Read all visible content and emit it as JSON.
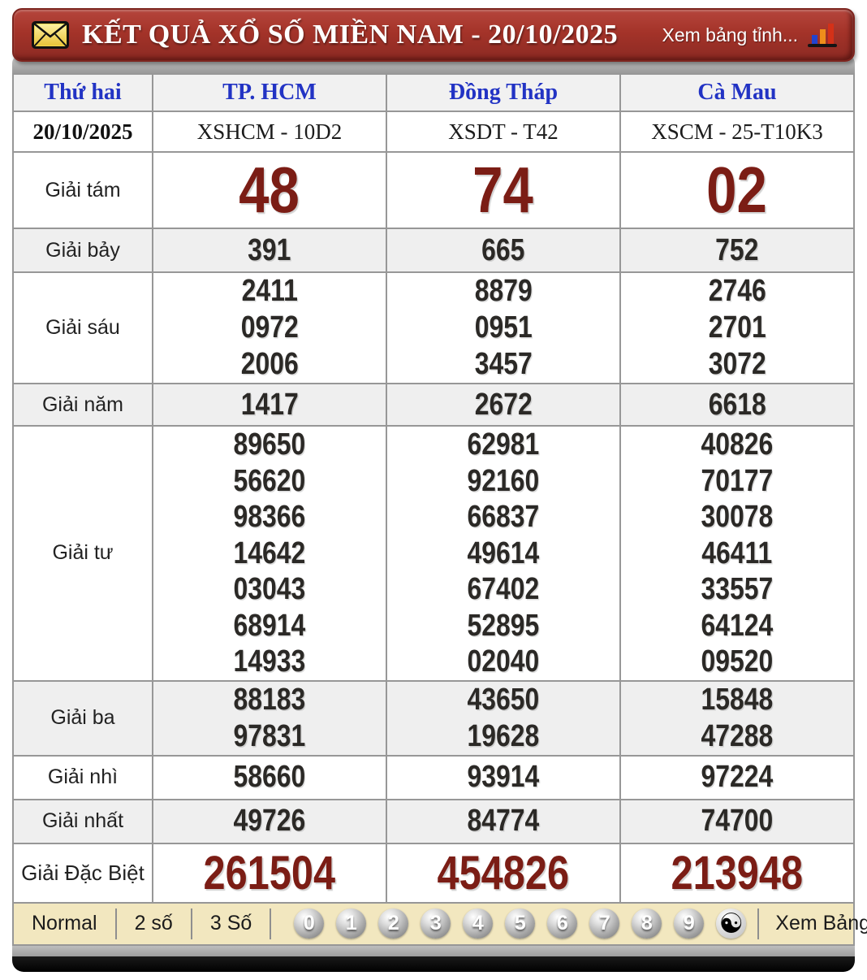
{
  "header": {
    "title": "KẾT QUẢ XỔ SỐ MIỀN NAM - 20/10/2025",
    "right_link": "Xem bảng tỉnh..."
  },
  "table": {
    "columns": [
      "Thứ hai",
      "TP. HCM",
      "Đồng Tháp",
      "Cà Mau"
    ],
    "date": "20/10/2025",
    "codes": [
      "XSHCM - 10D2",
      "XSDT - T42",
      "XSCM - 25-T10K3"
    ],
    "prizes": [
      {
        "label": "Giải tám",
        "style": "tam",
        "values": [
          [
            "48"
          ],
          [
            "74"
          ],
          [
            "02"
          ]
        ]
      },
      {
        "label": "Giải bảy",
        "style": "bay",
        "values": [
          [
            "391"
          ],
          [
            "665"
          ],
          [
            "752"
          ]
        ]
      },
      {
        "label": "Giải sáu",
        "style": "sau",
        "values": [
          [
            "2411",
            "0972",
            "2006"
          ],
          [
            "8879",
            "0951",
            "3457"
          ],
          [
            "2746",
            "2701",
            "3072"
          ]
        ]
      },
      {
        "label": "Giải năm",
        "style": "nam",
        "values": [
          [
            "1417"
          ],
          [
            "2672"
          ],
          [
            "6618"
          ]
        ]
      },
      {
        "label": "Giải tư",
        "style": "tu",
        "values": [
          [
            "89650",
            "56620",
            "98366",
            "14642",
            "03043",
            "68914",
            "14933"
          ],
          [
            "62981",
            "92160",
            "66837",
            "49614",
            "67402",
            "52895",
            "02040"
          ],
          [
            "40826",
            "70177",
            "30078",
            "46411",
            "33557",
            "64124",
            "09520"
          ]
        ]
      },
      {
        "label": "Giải ba",
        "style": "ba",
        "values": [
          [
            "88183",
            "97831"
          ],
          [
            "43650",
            "19628"
          ],
          [
            "15848",
            "47288"
          ]
        ]
      },
      {
        "label": "Giải nhì",
        "style": "nhi",
        "values": [
          [
            "58660"
          ],
          [
            "93914"
          ],
          [
            "97224"
          ]
        ]
      },
      {
        "label": "Giải nhất",
        "style": "nhat",
        "values": [
          [
            "49726"
          ],
          [
            "84774"
          ],
          [
            "74700"
          ]
        ]
      },
      {
        "label": "Giải Đặc Biệt",
        "style": "db",
        "values": [
          [
            "261504"
          ],
          [
            "454826"
          ],
          [
            "213948"
          ]
        ]
      }
    ]
  },
  "toolbar": {
    "modes": [
      "Normal",
      "2 số",
      "3 Số"
    ],
    "digits": [
      "0",
      "1",
      "2",
      "3",
      "4",
      "5",
      "6",
      "7",
      "8",
      "9"
    ],
    "yinyang_symbol": "☯",
    "right_link": "Xem Bảng Loto"
  },
  "colors": {
    "header_red": "#a43329",
    "prize_maroon": "#7b1d15",
    "link_blue": "#2233c4",
    "toolbar_cream": "#f2e7bf",
    "border_gray": "#979797"
  }
}
